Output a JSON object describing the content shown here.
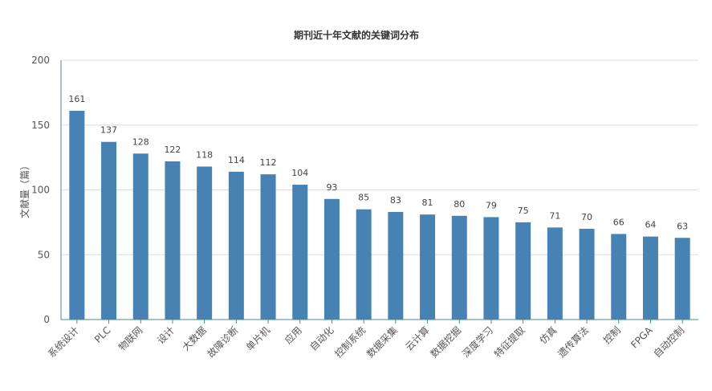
{
  "chart_data": {
    "type": "bar",
    "title": "期刊近十年文献的关键词分布",
    "ylabel": "文献量（篇）",
    "xlabel": "",
    "ylim": [
      0,
      200
    ],
    "yticks": [
      0,
      50,
      100,
      150,
      200
    ],
    "grid": true,
    "bar_color": "#4682b4",
    "categories": [
      "系统设计",
      "PLC",
      "物联网",
      "设计",
      "大数据",
      "故障诊断",
      "单片机",
      "应用",
      "自动化",
      "控制系统",
      "数据采集",
      "云计算",
      "数据挖掘",
      "深度学习",
      "特征提取",
      "仿真",
      "遗传算法",
      "控制",
      "FPGA",
      "自动控制"
    ],
    "values": [
      161,
      137,
      128,
      122,
      118,
      114,
      112,
      104,
      93,
      85,
      83,
      81,
      80,
      79,
      75,
      71,
      70,
      66,
      64,
      63
    ]
  }
}
